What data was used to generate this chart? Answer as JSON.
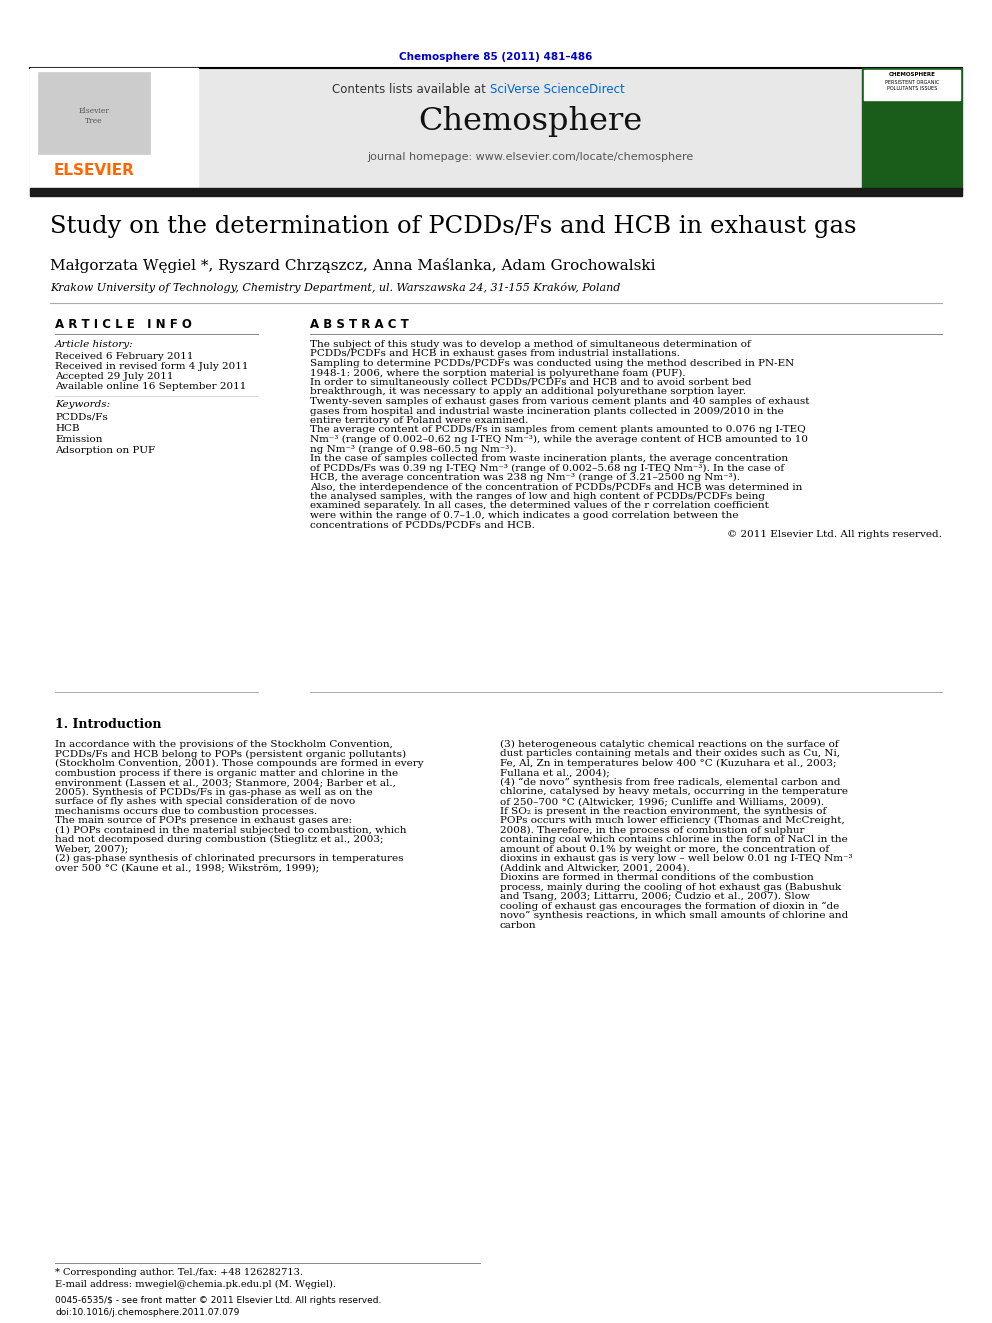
{
  "journal_ref": "Chemosphere 85 (2011) 481–486",
  "journal_ref_color": "#0000cc",
  "header_bg": "#e8e8e8",
  "sciverse_color": "#0066cc",
  "journal_name": "Chemosphere",
  "homepage_line": "journal homepage: www.elsevier.com/locate/chemosphere",
  "thick_bar_color": "#1a1a1a",
  "title": "Study on the determination of PCDDs/Fs and HCB in exhaust gas",
  "authors": "Małgorzata Węgiel *, Ryszard Chrząszcz, Anna Maślanka, Adam Grochowalski",
  "affiliation": "Krakow University of Technology, Chemistry Department, ul. Warszawska 24, 31-155 Kraków, Poland",
  "article_info_header": "A R T I C L E   I N F O",
  "abstract_header": "A B S T R A C T",
  "article_history_label": "Article history:",
  "received": "Received 6 February 2011",
  "revised": "Received in revised form 4 July 2011",
  "accepted": "Accepted 29 July 2011",
  "available": "Available online 16 September 2011",
  "keywords_label": "Keywords:",
  "keywords": [
    "PCDDs/Fs",
    "HCB",
    "Emission",
    "Adsorption on PUF"
  ],
  "abstract_paragraphs": [
    "The subject of this study was to develop a method of simultaneous determination of PCDDs/PCDFs and HCB in exhaust gases from industrial installations.",
    "    Sampling to determine PCDDs/PCDFs was conducted using the method described in PN-EN 1948-1: 2006, where the sorption material is polyurethane foam (PUF).",
    "    In order to simultaneously collect PCDDs/PCDFs and HCB and to avoid sorbent bed breakthrough, it was necessary to apply an additional polyurethane sorption layer.",
    "    Twenty-seven samples of exhaust gases from various cement plants and 40 samples of exhaust gases from hospital and industrial waste incineration plants collected in 2009/2010 in the entire territory of Poland were examined.",
    "    The average content of PCDDs/Fs in samples from cement plants amounted to 0.076 ng I-TEQ Nm⁻³ (range of 0.002–0.62 ng I-TEQ Nm⁻³), while the average content of HCB amounted to 10 ng Nm⁻³ (range of 0.98–60.5 ng Nm⁻³).",
    "    In the case of samples collected from waste incineration plants, the average concentration of PCDDs/Fs was 0.39 ng I-TEQ Nm⁻³ (range of 0.002–5.68 ng I-TEQ Nm⁻³). In the case of HCB, the average concentration was 238 ng Nm⁻³ (range of 3.21–2500 ng Nm⁻³).",
    "    Also, the interdependence of the concentration of PCDDs/PCDFs and HCB was determined in the analysed samples, with the ranges of low and high content of PCDDs/PCDFs being examined separately. In all cases, the determined values of the r correlation coefficient were within the range of 0.7–1.0, which indicates a good correlation between the concentrations of PCDDs/PCDFs and HCB.",
    "© 2011 Elsevier Ltd. All rights reserved."
  ],
  "intro_header": "1. Introduction",
  "intro_col1_paragraphs": [
    "    In accordance with the provisions of the Stockholm Convention, PCDDs/Fs and HCB belong to POPs (persistent organic pollutants) (Stockholm Convention, 2001). Those compounds are formed in every combustion process if there is organic matter and chlorine in the environment (Lassen et al., 2003; Stanmore, 2004; Barber et al., 2005). Synthesis of PCDDs/Fs in gas-phase as well as on the surface of fly ashes with special consideration of de novo mechanisms occurs due to combustion processes.",
    "    The main source of POPs presence in exhaust gases are:",
    "(1)  POPs contained in the material subjected to combustion, which had not decomposed during combustion (Stieglitz et al., 2003; Weber, 2007);",
    "(2)  gas-phase synthesis of chlorinated precursors in temperatures over 500 °C (Kaune et al., 1998; Wikström, 1999);"
  ],
  "intro_col2_paragraphs": [
    "(3)  heterogeneous catalytic chemical reactions on the surface of dust particles containing metals and their oxides such as Cu, Ni, Fe, Al, Zn in temperatures below 400 °C (Kuzuhara et al., 2003; Fullana et al., 2004);",
    "(4)  “de novo” synthesis from free radicals, elemental carbon and chlorine, catalysed by heavy metals, occurring in the temperature of 250–700 °C (Altwicker, 1996; Cunliffe and Williams, 2009).",
    "    If SO₂ is present in the reaction environment, the synthesis of POPs occurs with much lower efficiency (Thomas and McCreight, 2008). Therefore, in the process of combustion of sulphur containing coal which contains chlorine in the form of NaCl in the amount of about 0.1% by weight or more, the concentration of dioxins in exhaust gas is very low – well below 0.01 ng I-TEQ Nm⁻³ (Addink and Altwicker, 2001, 2004).",
    "    Dioxins are formed in thermal conditions of the combustion process, mainly during the cooling of hot exhaust gas (Babushuk and Tsang, 2003; Littarru, 2006; Cudzio et al., 2007). Slow cooling of exhaust gas encourages the formation of dioxin in “de novo” synthesis reactions, in which small amounts of chlorine and carbon"
  ],
  "footnote_star": "* Corresponding author. Tel./fax: +48 126282713.",
  "footnote_email": "E-mail address: mwegiel@chemia.pk.edu.pl (M. Węgiel).",
  "issn_line": "0045-6535/$ - see front matter © 2011 Elsevier Ltd. All rights reserved.",
  "doi_line": "doi:10.1016/j.chemosphere.2011.07.079",
  "elsevier_orange": "#ff6600",
  "link_blue": "#3366cc"
}
